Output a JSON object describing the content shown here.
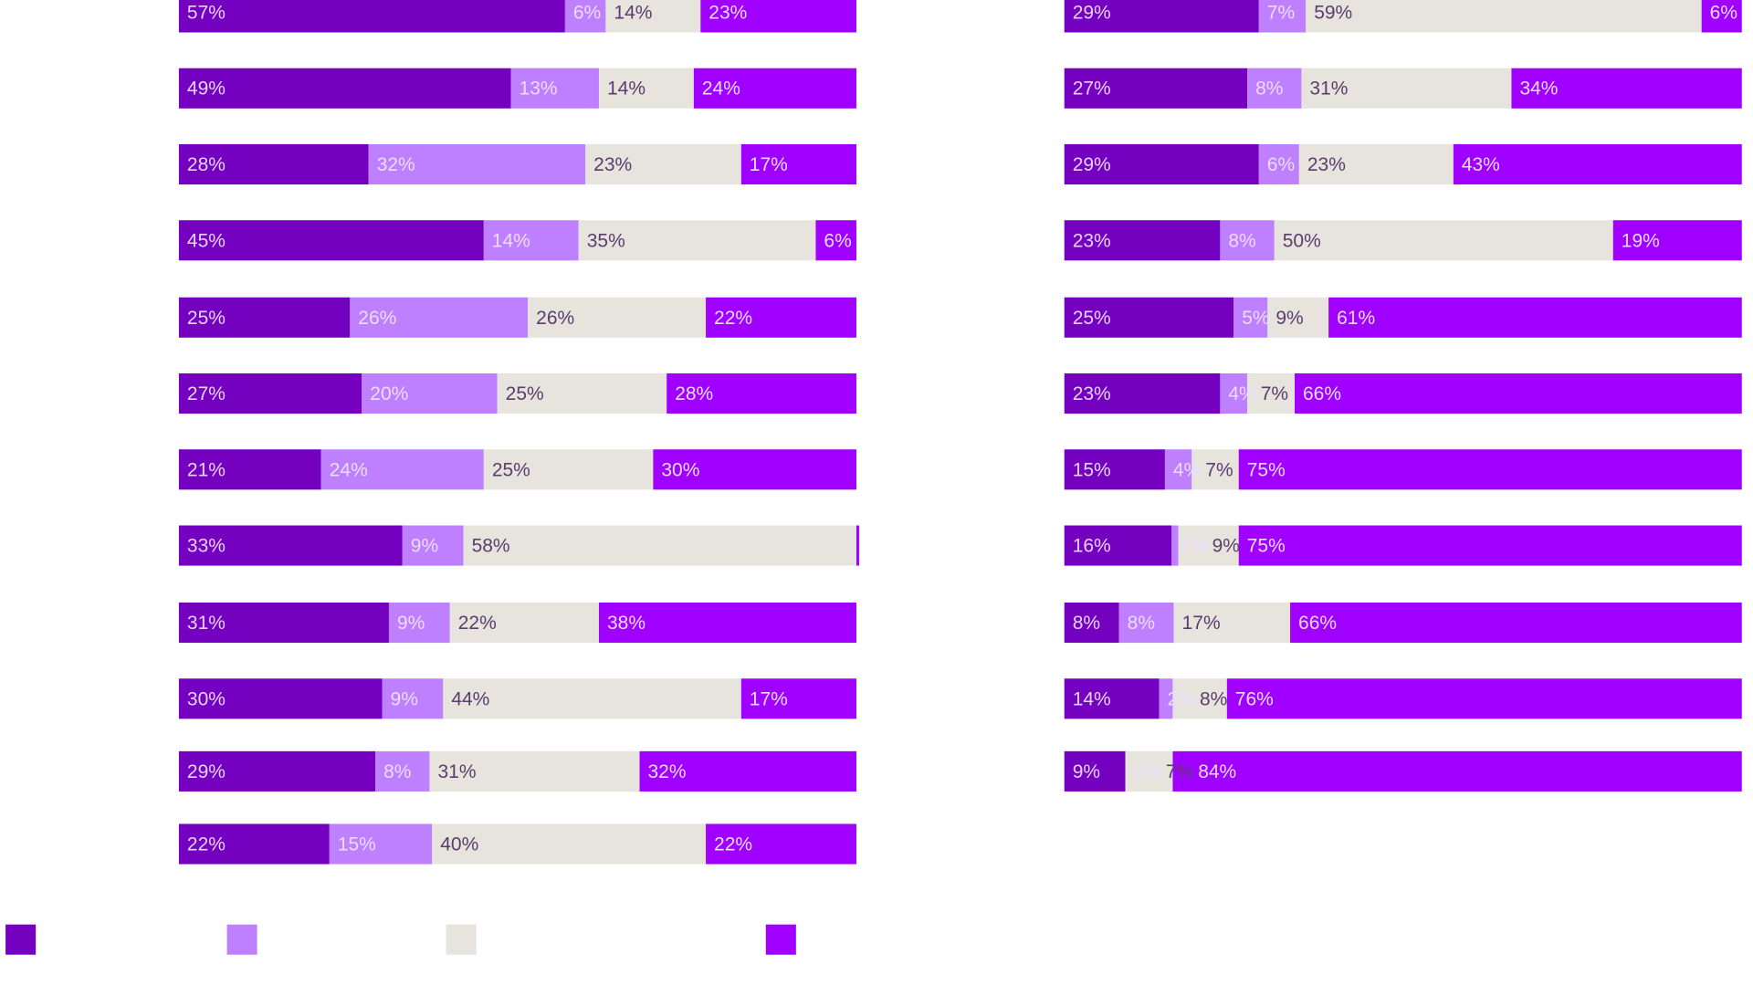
{
  "chart_data": {
    "type": "bar",
    "orientation": "horizontal",
    "stacked": true,
    "percent": true,
    "xlim": [
      0,
      100
    ],
    "grid": false,
    "legend_placement": "bottom-left",
    "colors": [
      "#7400c0",
      "#bf80ff",
      "#e6e4dc",
      "#a000ff"
    ],
    "label_colors": [
      "#e6d2ff",
      "#ecdcff",
      "#5b3d6e",
      "#ecdcff"
    ],
    "charts": [
      {
        "rows": [
          [
            57,
            6,
            14,
            23
          ],
          [
            49,
            13,
            14,
            24
          ],
          [
            28,
            32,
            23,
            17
          ],
          [
            45,
            14,
            35,
            6
          ],
          [
            25,
            26,
            26,
            22
          ],
          [
            27,
            20,
            25,
            28
          ],
          [
            21,
            24,
            25,
            30
          ],
          [
            33,
            9,
            58,
            0
          ],
          [
            31,
            9,
            22,
            38
          ],
          [
            30,
            9,
            44,
            17
          ],
          [
            29,
            8,
            31,
            32
          ],
          [
            22,
            15,
            40,
            22
          ]
        ]
      },
      {
        "rows": [
          [
            29,
            7,
            59,
            6
          ],
          [
            27,
            8,
            31,
            34
          ],
          [
            29,
            6,
            23,
            43
          ],
          [
            23,
            8,
            50,
            19
          ],
          [
            25,
            5,
            9,
            61
          ],
          [
            23,
            4,
            7,
            66
          ],
          [
            15,
            4,
            7,
            75
          ],
          [
            16,
            1,
            9,
            75
          ],
          [
            8,
            8,
            17,
            66
          ],
          [
            14,
            2,
            8,
            76
          ],
          [
            9,
            0,
            7,
            84
          ]
        ]
      }
    ]
  }
}
